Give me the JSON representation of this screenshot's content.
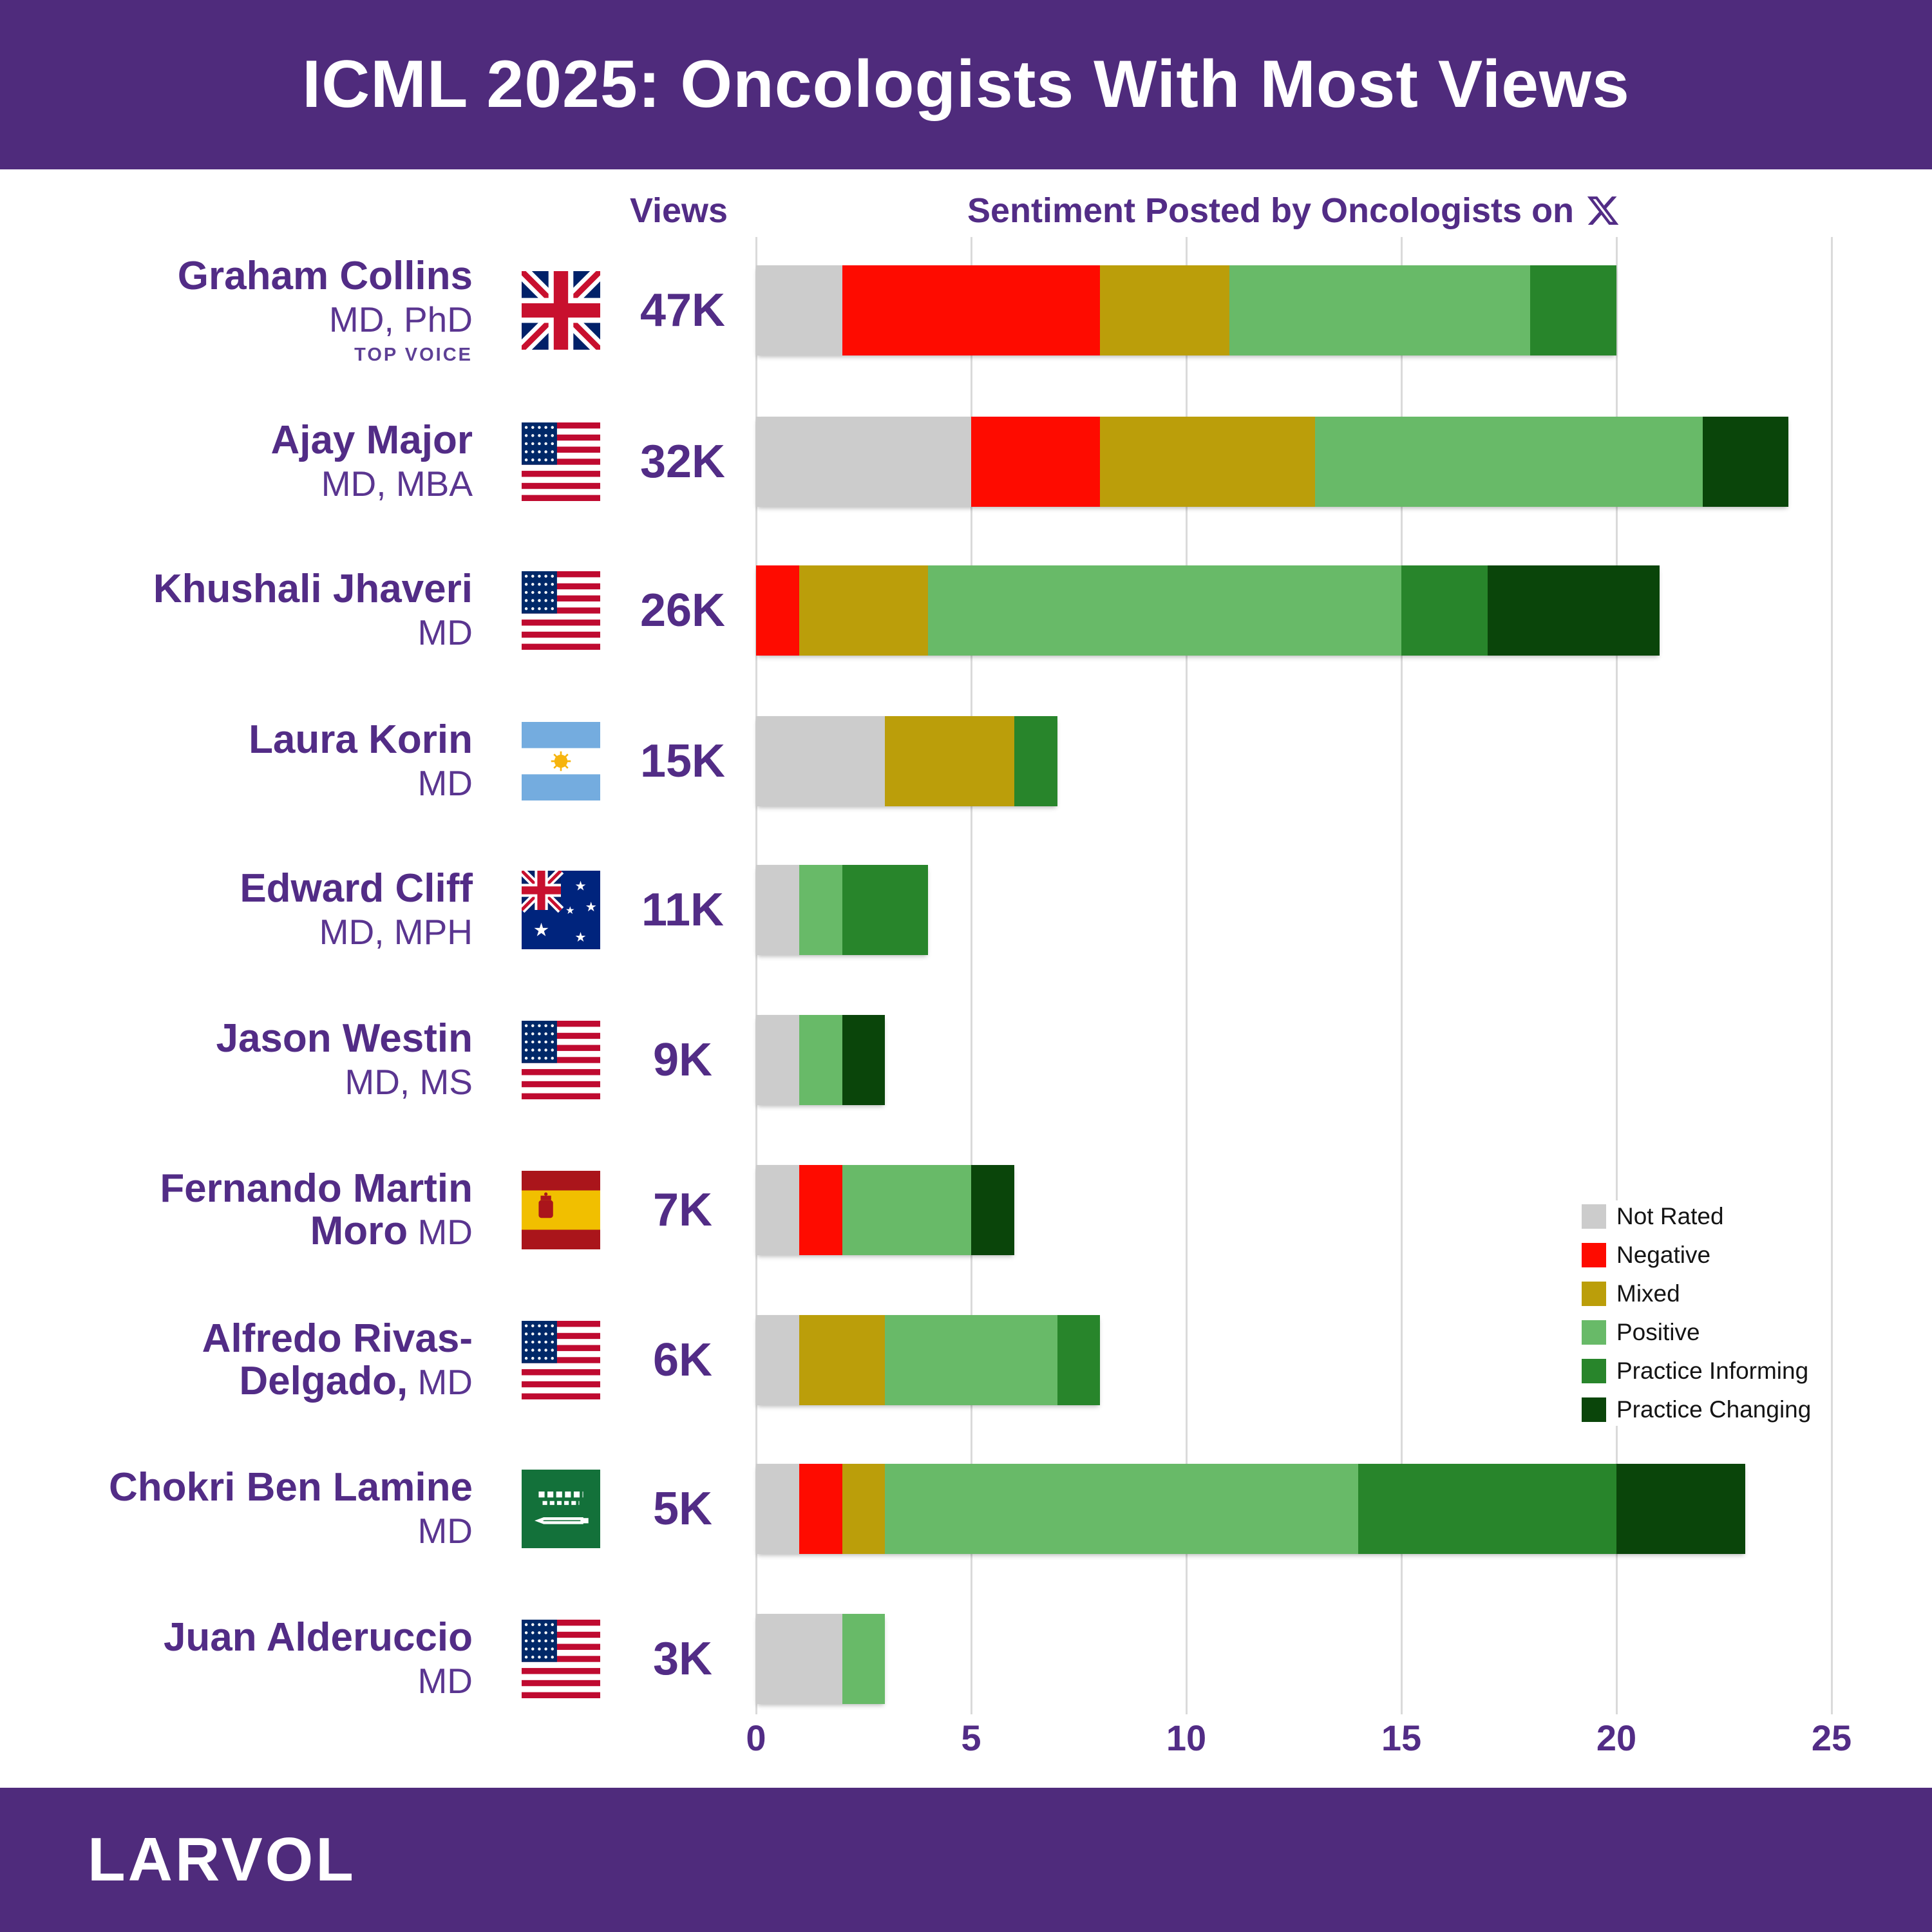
{
  "header": {
    "title": "ICML 2025: Oncologists With Most Views"
  },
  "columns": {
    "views_label": "Views",
    "sentiment_label": "Sentiment Posted by Oncologists on",
    "x_icon": "x-twitter-logo"
  },
  "legend": [
    {
      "key": "not_rated",
      "label": "Not Rated",
      "color": "#CCCCCC"
    },
    {
      "key": "negative",
      "label": "Negative",
      "color": "#FE0B00"
    },
    {
      "key": "mixed",
      "label": "Mixed",
      "color": "#BB9E0A"
    },
    {
      "key": "positive",
      "label": "Positive",
      "color": "#68BA68"
    },
    {
      "key": "practice_informing",
      "label": "Practice Informing",
      "color": "#28852B"
    },
    {
      "key": "practice_changing",
      "label": "Practice Changing",
      "color": "#0A450A"
    }
  ],
  "axis": {
    "ticks": [
      0,
      5,
      10,
      15,
      20,
      25
    ],
    "max": 25
  },
  "rows": [
    {
      "name_lines": [
        {
          "bold": "Graham Collins",
          "regular": ""
        },
        {
          "bold": "",
          "regular": "MD, PhD"
        }
      ],
      "badge": "TOP VOICE",
      "flag": "united-kingdom",
      "views": "47K",
      "segments": {
        "not_rated": 2,
        "negative": 6,
        "mixed": 3,
        "positive": 7,
        "practice_informing": 2,
        "practice_changing": 0
      }
    },
    {
      "name_lines": [
        {
          "bold": "Ajay Major",
          "regular": ""
        },
        {
          "bold": "",
          "regular": "MD, MBA"
        }
      ],
      "flag": "united-states",
      "views": "32K",
      "segments": {
        "not_rated": 5,
        "negative": 3,
        "mixed": 5,
        "positive": 9,
        "practice_informing": 0,
        "practice_changing": 2
      }
    },
    {
      "name_lines": [
        {
          "bold": "Khushali Jhaveri",
          "regular": ""
        },
        {
          "bold": "",
          "regular": "MD"
        }
      ],
      "flag": "united-states",
      "views": "26K",
      "segments": {
        "not_rated": 0,
        "negative": 1,
        "mixed": 3,
        "positive": 11,
        "practice_informing": 2,
        "practice_changing": 4
      }
    },
    {
      "name_lines": [
        {
          "bold": "Laura Korin",
          "regular": ""
        },
        {
          "bold": "",
          "regular": "MD"
        }
      ],
      "flag": "argentina",
      "views": "15K",
      "segments": {
        "not_rated": 3,
        "negative": 0,
        "mixed": 3,
        "positive": 0,
        "practice_informing": 1,
        "practice_changing": 0
      }
    },
    {
      "name_lines": [
        {
          "bold": "Edward Cliff",
          "regular": ""
        },
        {
          "bold": "",
          "regular": "MD, MPH"
        }
      ],
      "flag": "australia",
      "views": "11K",
      "segments": {
        "not_rated": 1,
        "negative": 0,
        "mixed": 0,
        "positive": 1,
        "practice_informing": 2,
        "practice_changing": 0
      }
    },
    {
      "name_lines": [
        {
          "bold": "Jason Westin",
          "regular": ""
        },
        {
          "bold": "",
          "regular": "MD, MS"
        }
      ],
      "flag": "united-states",
      "views": "9K",
      "segments": {
        "not_rated": 1,
        "negative": 0,
        "mixed": 0,
        "positive": 1,
        "practice_informing": 0,
        "practice_changing": 1
      }
    },
    {
      "name_lines": [
        {
          "bold": "Fernando Martin",
          "regular": ""
        },
        {
          "bold": "Moro",
          "regular": " MD"
        }
      ],
      "flag": "spain",
      "views": "7K",
      "segments": {
        "not_rated": 1,
        "negative": 1,
        "mixed": 0,
        "positive": 3,
        "practice_informing": 0,
        "practice_changing": 1
      }
    },
    {
      "name_lines": [
        {
          "bold": "Alfredo Rivas-",
          "regular": ""
        },
        {
          "bold": "Delgado,",
          "regular": " MD"
        }
      ],
      "flag": "united-states",
      "views": "6K",
      "segments": {
        "not_rated": 1,
        "negative": 0,
        "mixed": 2,
        "positive": 4,
        "practice_informing": 1,
        "practice_changing": 0
      }
    },
    {
      "name_lines": [
        {
          "bold": "Chokri Ben Lamine",
          "regular": ""
        },
        {
          "bold": "",
          "regular": "MD"
        }
      ],
      "flag": "saudi-arabia",
      "views": "5K",
      "segments": {
        "not_rated": 1,
        "negative": 1,
        "mixed": 1,
        "positive": 11,
        "practice_informing": 6,
        "practice_changing": 3
      }
    },
    {
      "name_lines": [
        {
          "bold": "Juan Alderuccio",
          "regular": ""
        },
        {
          "bold": "",
          "regular": "MD"
        }
      ],
      "flag": "united-states",
      "views": "3K",
      "segments": {
        "not_rated": 2,
        "negative": 0,
        "mixed": 0,
        "positive": 1,
        "practice_informing": 0,
        "practice_changing": 0
      }
    }
  ],
  "footer": {
    "brand": "LARVOL"
  },
  "chart_data": {
    "type": "bar",
    "orientation": "horizontal",
    "stacked": true,
    "title": "ICML 2025: Oncologists With Most Views",
    "xlabel": "",
    "ylabel": "",
    "x_range": [
      0,
      25
    ],
    "x_ticks": [
      0,
      5,
      10,
      15,
      20,
      25
    ],
    "grid": true,
    "legend_position": "right",
    "categories": [
      "Graham Collins",
      "Ajay Major",
      "Khushali Jhaveri",
      "Laura Korin",
      "Edward Cliff",
      "Jason Westin",
      "Fernando Martin Moro",
      "Alfredo Rivas-Delgado",
      "Chokri Ben Lamine",
      "Juan Alderuccio"
    ],
    "views": [
      "47K",
      "32K",
      "26K",
      "15K",
      "11K",
      "9K",
      "7K",
      "6K",
      "5K",
      "3K"
    ],
    "series": [
      {
        "name": "Not Rated",
        "color": "#CCCCCC",
        "values": [
          2,
          5,
          0,
          3,
          1,
          1,
          1,
          1,
          1,
          2
        ]
      },
      {
        "name": "Negative",
        "color": "#FE0B00",
        "values": [
          6,
          3,
          1,
          0,
          0,
          0,
          1,
          0,
          1,
          0
        ]
      },
      {
        "name": "Mixed",
        "color": "#BB9E0A",
        "values": [
          3,
          5,
          3,
          3,
          0,
          0,
          0,
          2,
          1,
          0
        ]
      },
      {
        "name": "Positive",
        "color": "#68BA68",
        "values": [
          7,
          9,
          11,
          0,
          1,
          1,
          3,
          4,
          11,
          1
        ]
      },
      {
        "name": "Practice Informing",
        "color": "#28852B",
        "values": [
          2,
          0,
          2,
          1,
          2,
          0,
          0,
          1,
          6,
          0
        ]
      },
      {
        "name": "Practice Changing",
        "color": "#0A450A",
        "values": [
          0,
          2,
          4,
          0,
          0,
          1,
          1,
          0,
          3,
          0
        ]
      }
    ],
    "totals": [
      20,
      24,
      21,
      7,
      4,
      3,
      6,
      8,
      23,
      3
    ]
  }
}
